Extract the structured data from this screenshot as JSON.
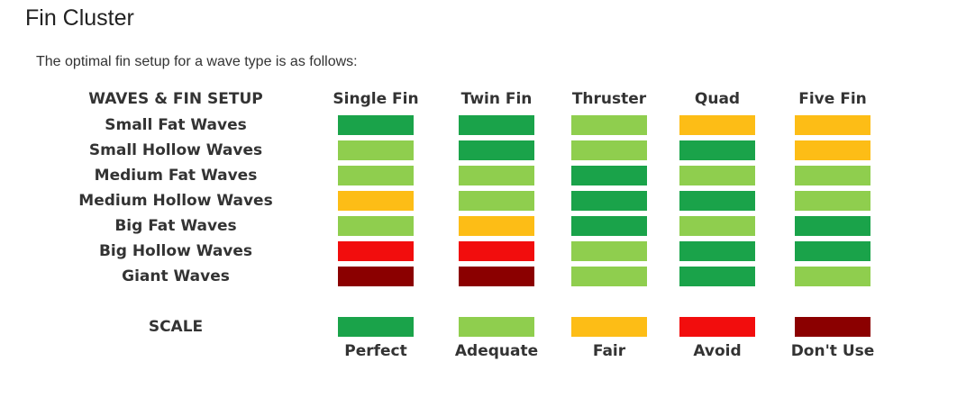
{
  "page": {
    "title": "Fin Cluster",
    "intro": "The optimal fin setup for a wave type is as follows:"
  },
  "table": {
    "corner_header": "WAVES & FIN SETUP",
    "columns": [
      "Single Fin",
      "Twin Fin",
      "Thruster",
      "Quad",
      "Five Fin"
    ],
    "rows": [
      {
        "label": "Small Fat Waves",
        "ratings": [
          "Perfect",
          "Perfect",
          "Adequate",
          "Fair",
          "Fair"
        ]
      },
      {
        "label": "Small Hollow Waves",
        "ratings": [
          "Adequate",
          "Perfect",
          "Adequate",
          "Perfect",
          "Fair"
        ]
      },
      {
        "label": "Medium Fat Waves",
        "ratings": [
          "Adequate",
          "Adequate",
          "Perfect",
          "Adequate",
          "Adequate"
        ]
      },
      {
        "label": "Medium Hollow Waves",
        "ratings": [
          "Fair",
          "Adequate",
          "Perfect",
          "Perfect",
          "Adequate"
        ]
      },
      {
        "label": "Big Fat Waves",
        "ratings": [
          "Adequate",
          "Fair",
          "Perfect",
          "Adequate",
          "Perfect"
        ]
      },
      {
        "label": "Big Hollow Waves",
        "ratings": [
          "Avoid",
          "Avoid",
          "Adequate",
          "Perfect",
          "Perfect"
        ]
      },
      {
        "label": "Giant Waves",
        "ratings": [
          "Don't Use",
          "Don't Use",
          "Adequate",
          "Perfect",
          "Adequate"
        ]
      }
    ]
  },
  "scale": {
    "label": "SCALE",
    "items": [
      {
        "name": "Perfect",
        "color": "#1aa34a"
      },
      {
        "name": "Adequate",
        "color": "#8fce4e"
      },
      {
        "name": "Fair",
        "color": "#fdbd16"
      },
      {
        "name": "Avoid",
        "color": "#f20d0d"
      },
      {
        "name": "Don't Use",
        "color": "#8b0000"
      }
    ]
  }
}
